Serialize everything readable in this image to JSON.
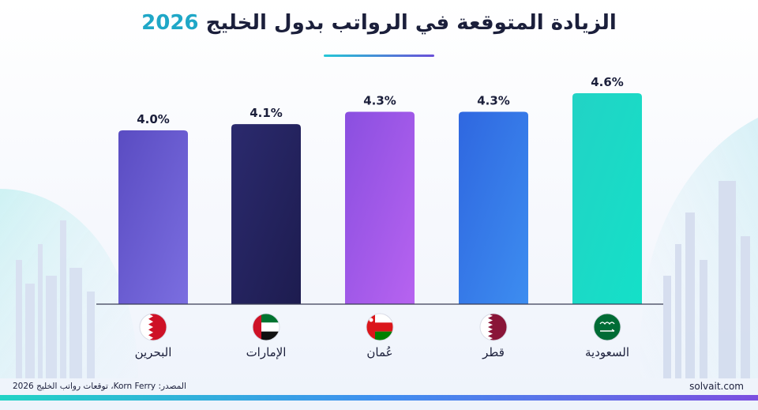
{
  "header": {
    "title_main": "الزيادة المتوقعة في الرواتب بدول الخليج",
    "title_year": "2026"
  },
  "footer": {
    "source": "المصدر: Korn Ferry، توقعات رواتب الخليج 2026",
    "site": "solvait.com"
  },
  "colors": {
    "bars": [
      [
        "#5a4cc2",
        "#7b6ee0"
      ],
      [
        "#2b2a6e",
        "#1d1c4f"
      ],
      [
        "#8a4fe0",
        "#b763f0"
      ],
      [
        "#2f67e0",
        "#3d8df0"
      ],
      [
        "#22d3c5",
        "#14e0c8"
      ]
    ]
  },
  "chart_data": {
    "type": "bar",
    "categories": [
      "البحرين",
      "الإمارات",
      "عُمان",
      "قطر",
      "السعودية"
    ],
    "values": [
      4.0,
      4.1,
      4.3,
      4.3,
      4.6
    ],
    "value_labels": [
      "4.0%",
      "4.1%",
      "4.3%",
      "4.3%",
      "4.6%"
    ],
    "flag_icons": [
      "bahrain-flag-icon",
      "uae-flag-icon",
      "oman-flag-icon",
      "qatar-flag-icon",
      "saudi-flag-icon"
    ],
    "title": "الزيادة المتوقعة في الرواتب بدول الخليج 2026",
    "xlabel": "",
    "ylabel": "",
    "grid": false
  }
}
